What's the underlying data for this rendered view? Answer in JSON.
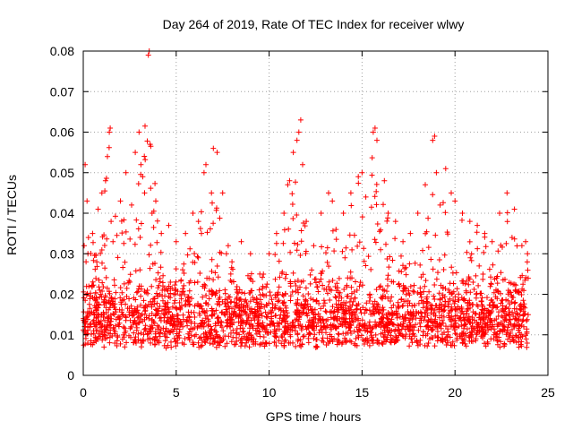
{
  "chart_data": {
    "type": "scatter",
    "title": "Day 264 of 2019, Rate Of TEC Index for receiver wlwy",
    "xlabel": "GPS time / hours",
    "ylabel": "ROTI / TECUs",
    "xlim": [
      0,
      25
    ],
    "ylim": [
      0,
      0.08
    ],
    "xticks": [
      0,
      5,
      10,
      15,
      20,
      25
    ],
    "xtick_labels": [
      "0",
      "5",
      "10",
      "15",
      "20",
      "25"
    ],
    "yticks": [
      0,
      0.01,
      0.02,
      0.03,
      0.04,
      0.05,
      0.06,
      0.07,
      0.08
    ],
    "ytick_labels": [
      "0",
      "0.01",
      "0.02",
      "0.03",
      "0.04",
      "0.05",
      "0.06",
      "0.07",
      "0.08"
    ],
    "grid": true,
    "marker": "+",
    "series": [
      {
        "name": "ROTI",
        "color": "#ff0000",
        "x": [
          0.05,
          0.1,
          0.15,
          0.2,
          0.25,
          0.3,
          0.5,
          0.8,
          1.0,
          1.2,
          1.3,
          1.4,
          1.45,
          1.5,
          1.6,
          2.0,
          2.3,
          2.6,
          2.8,
          3.0,
          3.1,
          3.2,
          3.3,
          3.5,
          3.55,
          3.6,
          3.7,
          3.9,
          4.2,
          4.6,
          5.0,
          5.5,
          5.9,
          6.2,
          6.5,
          6.6,
          6.9,
          7.0,
          7.2,
          7.5,
          7.7,
          7.8,
          8.0,
          8.5,
          9.0,
          9.5,
          10.0,
          10.4,
          10.8,
          11.0,
          11.1,
          11.3,
          11.5,
          11.6,
          11.7,
          11.8,
          12.0,
          12.4,
          12.8,
          13.2,
          13.4,
          13.6,
          14.0,
          14.4,
          14.8,
          15.0,
          15.2,
          15.6,
          15.7,
          15.8,
          16.2,
          16.4,
          16.8,
          17.2,
          17.6,
          18.0,
          18.4,
          18.8,
          18.9,
          19.0,
          19.2,
          19.5,
          19.8,
          20.0,
          20.4,
          20.8,
          21.2,
          21.6,
          22.0,
          22.4,
          22.8,
          23.2,
          23.6,
          23.8,
          23.9
        ],
        "y": [
          0.032,
          0.052,
          0.028,
          0.043,
          0.03,
          0.022,
          0.035,
          0.041,
          0.045,
          0.048,
          0.054,
          0.06,
          0.061,
          0.038,
          0.033,
          0.043,
          0.05,
          0.042,
          0.055,
          0.06,
          0.052,
          0.049,
          0.045,
          0.079,
          0.08,
          0.057,
          0.04,
          0.043,
          0.035,
          0.037,
          0.033,
          0.035,
          0.04,
          0.038,
          0.05,
          0.052,
          0.045,
          0.056,
          0.055,
          0.045,
          0.03,
          0.032,
          0.028,
          0.033,
          0.03,
          0.025,
          0.03,
          0.035,
          0.04,
          0.047,
          0.048,
          0.055,
          0.058,
          0.06,
          0.063,
          0.052,
          0.038,
          0.032,
          0.04,
          0.045,
          0.043,
          0.036,
          0.04,
          0.045,
          0.049,
          0.05,
          0.044,
          0.06,
          0.061,
          0.058,
          0.048,
          0.04,
          0.038,
          0.033,
          0.035,
          0.04,
          0.047,
          0.058,
          0.059,
          0.05,
          0.042,
          0.051,
          0.045,
          0.043,
          0.04,
          0.038,
          0.037,
          0.035,
          0.033,
          0.04,
          0.045,
          0.041,
          0.032,
          0.033,
          0.03
        ],
        "baseline_band": [
          0.005,
          0.025
        ]
      }
    ]
  }
}
